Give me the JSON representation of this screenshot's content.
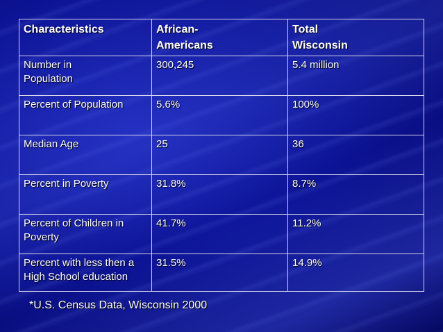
{
  "table": {
    "header": [
      "Characteristics",
      "African-Americans",
      "Total Wisconsin"
    ],
    "rows": [
      [
        "Number in Population",
        "300,245",
        "5.4 million"
      ],
      [
        "Percent of Population",
        "5.6%",
        "100%"
      ],
      [
        "Median Age",
        "25",
        "36"
      ],
      [
        "Percent in Poverty",
        "31.8%",
        "8.7%"
      ],
      [
        "Percent of Children in Poverty",
        "41.7%",
        "11.2%"
      ],
      [
        "Percent with less then a High School education",
        "31.5%",
        "14.9%"
      ]
    ]
  },
  "footnote": "*U.S. Census Data, Wisconsin 2000"
}
